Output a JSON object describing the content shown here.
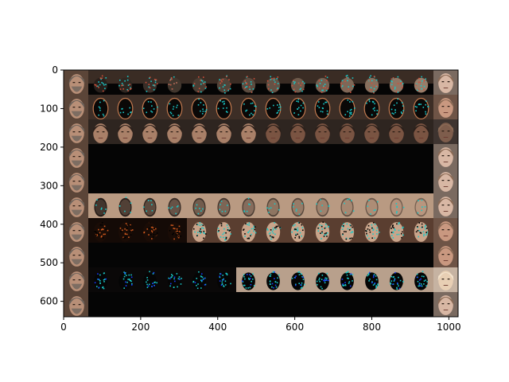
{
  "chart_data": {
    "type": "heatmap",
    "title": "",
    "xlabel": "",
    "ylabel": "",
    "xlim": [
      0,
      1024
    ],
    "ylim": [
      640,
      0
    ],
    "grid": false,
    "x_ticks": [
      0,
      200,
      400,
      600,
      800,
      1000
    ],
    "y_ticks": [
      0,
      100,
      200,
      300,
      400,
      500,
      600
    ],
    "x_tick_labels": [
      "0",
      "200",
      "400",
      "600",
      "800",
      "1000"
    ],
    "y_tick_labels": [
      "0",
      "100",
      "200",
      "300",
      "400",
      "500",
      "600"
    ],
    "tile_size": 64,
    "grid_columns": 16,
    "grid_rows": 10,
    "rows": [
      {
        "label": "",
        "input": "face",
        "middle": "masked-noisy",
        "output": "face-pale"
      },
      {
        "label": "",
        "input": "face",
        "middle": "dark-edges",
        "output": "face-warm"
      },
      {
        "label": "",
        "input": "face",
        "middle": "faces",
        "output": "face-dark"
      },
      {
        "label": "",
        "input": "face",
        "middle": "blank",
        "output": "face-pale"
      },
      {
        "label": "",
        "input": "face",
        "middle": "blank",
        "output": "face-pale"
      },
      {
        "label": "",
        "input": "face",
        "middle": "beige-masked",
        "output": "face-pale"
      },
      {
        "label": "",
        "input": "face",
        "middle": "fire-noise",
        "output": "face-warm"
      },
      {
        "label": "",
        "input": "face",
        "middle": "blank",
        "output": "face-warm"
      },
      {
        "label": "",
        "input": "face",
        "middle": "cyan-blobs",
        "output": "face-blonde"
      },
      {
        "label": "",
        "input": "face",
        "middle": "blank",
        "output": "face-pale"
      }
    ]
  },
  "colors": {
    "background": "#ffffff",
    "image_black": "#050505",
    "input_tile": "#8a6a55",
    "skin": "#c9a48a",
    "skin_dark": "#7a5440",
    "beige": "#b99a82",
    "cyan": "#19c8c8",
    "fire": "#d25a1e",
    "blonde": "#e8cfb4"
  }
}
